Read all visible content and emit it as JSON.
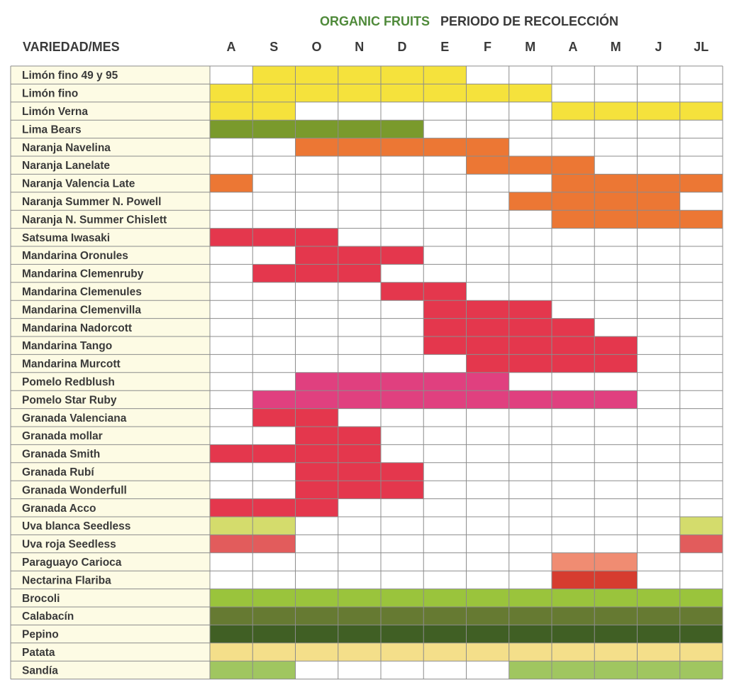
{
  "header": {
    "brand": "ORGANIC FRUITS",
    "title": "PERIODO DE RECOLECCIÓN",
    "column_header": "VARIEDAD/MES"
  },
  "colors": {
    "lemon": "#f5e23c",
    "lime": "#7a9a2c",
    "orange": "#ec7734",
    "mandarin": "#e4374d",
    "pomelo": "#e0407f",
    "grape_white": "#d4dc6c",
    "grape_red": "#e25c5c",
    "paraguayo": "#f08c72",
    "nectarine": "#d63c2f",
    "broccoli": "#9ac43c",
    "zucchini": "#667a32",
    "cucumber": "#405f24",
    "potato": "#f4df8a",
    "watermelon": "#a0c660",
    "label_bg": "#fdfbe4",
    "grid_line": "#8c8c8c"
  },
  "chart_data": {
    "type": "table",
    "months": [
      "A",
      "S",
      "O",
      "N",
      "D",
      "E",
      "F",
      "M",
      "A",
      "M",
      "J",
      "JL"
    ],
    "rows": [
      {
        "label": "Limón fino 49 y 95",
        "color": "lemon",
        "months": [
          1,
          2,
          3,
          4,
          5
        ]
      },
      {
        "label": "Limón fino",
        "color": "lemon",
        "months": [
          0,
          1,
          2,
          3,
          4,
          5,
          6,
          7
        ]
      },
      {
        "label": "Limón Verna",
        "color": "lemon",
        "months": [
          0,
          1,
          8,
          9,
          10,
          11
        ]
      },
      {
        "label": "Lima Bears",
        "color": "lime",
        "months": [
          0,
          1,
          2,
          3,
          4
        ]
      },
      {
        "label": "Naranja Navelina",
        "color": "orange",
        "months": [
          2,
          3,
          4,
          5,
          6
        ]
      },
      {
        "label": "Naranja Lanelate",
        "color": "orange",
        "months": [
          6,
          7,
          8
        ]
      },
      {
        "label": "Naranja Valencia Late",
        "color": "orange",
        "months": [
          0,
          8,
          9,
          10,
          11
        ]
      },
      {
        "label": "Naranja Summer N. Powell",
        "color": "orange",
        "months": [
          7,
          8,
          9,
          10
        ]
      },
      {
        "label": "Naranja N. Summer Chislett",
        "color": "orange",
        "months": [
          8,
          9,
          10,
          11
        ]
      },
      {
        "label": "Satsuma Iwasaki",
        "color": "mandarin",
        "months": [
          0,
          1,
          2
        ]
      },
      {
        "label": "Mandarina Oronules",
        "color": "mandarin",
        "months": [
          2,
          3,
          4
        ]
      },
      {
        "label": "Mandarina Clemenruby",
        "color": "mandarin",
        "months": [
          1,
          2,
          3
        ]
      },
      {
        "label": "Mandarina Clemenules",
        "color": "mandarin",
        "months": [
          4,
          5
        ]
      },
      {
        "label": "Mandarina Clemenvilla",
        "color": "mandarin",
        "months": [
          5,
          6,
          7
        ]
      },
      {
        "label": "Mandarina Nadorcott",
        "color": "mandarin",
        "months": [
          5,
          6,
          7,
          8
        ]
      },
      {
        "label": "Mandarina Tango",
        "color": "mandarin",
        "months": [
          5,
          6,
          7,
          8,
          9
        ]
      },
      {
        "label": "Mandarina Murcott",
        "color": "mandarin",
        "months": [
          6,
          7,
          8,
          9
        ]
      },
      {
        "label": "Pomelo Redblush",
        "color": "pomelo",
        "months": [
          2,
          3,
          4,
          5,
          6
        ]
      },
      {
        "label": "Pomelo Star Ruby",
        "color": "pomelo",
        "months": [
          1,
          2,
          3,
          4,
          5,
          6,
          7,
          8,
          9
        ]
      },
      {
        "label": "Granada Valenciana",
        "color": "mandarin",
        "months": [
          1,
          2
        ]
      },
      {
        "label": "Granada mollar",
        "color": "mandarin",
        "months": [
          2,
          3
        ]
      },
      {
        "label": "Granada Smith",
        "color": "mandarin",
        "months": [
          0,
          1,
          2,
          3
        ]
      },
      {
        "label": "Granada Rubí",
        "color": "mandarin",
        "months": [
          2,
          3,
          4
        ]
      },
      {
        "label": "Granada Wonderfull",
        "color": "mandarin",
        "months": [
          2,
          3,
          4
        ]
      },
      {
        "label": "Granada Acco",
        "color": "mandarin",
        "months": [
          0,
          1,
          2
        ]
      },
      {
        "label": "Uva blanca Seedless",
        "color": "grape_white",
        "months": [
          0,
          1,
          11
        ]
      },
      {
        "label": "Uva roja Seedless",
        "color": "grape_red",
        "months": [
          0,
          1,
          11
        ]
      },
      {
        "label": "Paraguayo Carioca",
        "color": "paraguayo",
        "months": [
          8,
          9
        ]
      },
      {
        "label": "Nectarina Flariba",
        "color": "nectarine",
        "months": [
          8,
          9
        ]
      },
      {
        "label": "Brocoli",
        "color": "broccoli",
        "months": [
          0,
          1,
          2,
          3,
          4,
          5,
          6,
          7,
          8,
          9,
          10,
          11
        ]
      },
      {
        "label": "Calabacín",
        "color": "zucchini",
        "months": [
          0,
          1,
          2,
          3,
          4,
          5,
          6,
          7,
          8,
          9,
          10,
          11
        ]
      },
      {
        "label": "Pepino",
        "color": "cucumber",
        "months": [
          0,
          1,
          2,
          3,
          4,
          5,
          6,
          7,
          8,
          9,
          10,
          11
        ]
      },
      {
        "label": "Patata",
        "color": "potato",
        "months": [
          0,
          1,
          2,
          3,
          4,
          5,
          6,
          7,
          8,
          9,
          10,
          11
        ]
      },
      {
        "label": "Sandía",
        "color": "watermelon",
        "months": [
          0,
          1,
          7,
          8,
          9,
          10,
          11
        ]
      }
    ]
  }
}
